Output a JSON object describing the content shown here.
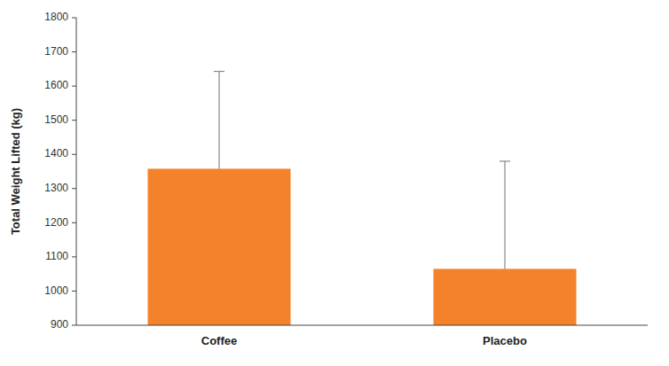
{
  "chart_data": {
    "type": "bar",
    "ylabel": "Total Weight Lifted (kg)",
    "categories": [
      "Coffee",
      "Placebo"
    ],
    "values": [
      1358,
      1065
    ],
    "errors_upper": [
      285,
      315
    ],
    "errors_lower": [
      0,
      0
    ],
    "color": "#F4822A",
    "error_color": "#888888",
    "ylim": [
      900,
      1800
    ],
    "yticks": [
      900,
      1000,
      1100,
      1200,
      1300,
      1400,
      1500,
      1600,
      1700,
      1800
    ],
    "grid": false
  }
}
